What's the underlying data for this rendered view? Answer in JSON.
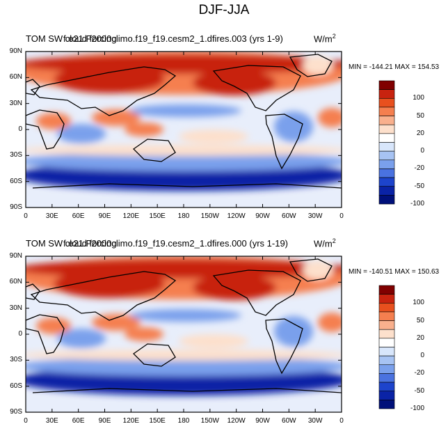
{
  "title": "DJF-JJA",
  "panels": [
    {
      "title_left": "TOM SW cloud forcing",
      "title_overlap": "f.e21.F2000climo.f19_f19.cesm2_1.dfires.003 (yrs 1-9)",
      "units_base": "W/m",
      "units_sup": "2",
      "minmax": "MIN = -144.21 MAX = 154.53"
    },
    {
      "title_left": "TOM SW cloud forcing",
      "title_overlap": "f.e21.F2000climo.f19_f19.cesm2_1.dfires.000 (yrs 1-19)",
      "units_base": "W/m",
      "units_sup": "2",
      "minmax": "MIN = -140.51 MAX = 150.63"
    }
  ],
  "lat_labels": [
    "90N",
    "60N",
    "30N",
    "0",
    "30S",
    "60S",
    "90S"
  ],
  "lon_labels": [
    "0",
    "30E",
    "60E",
    "90E",
    "120E",
    "150E",
    "180",
    "150W",
    "120W",
    "90W",
    "60W",
    "30W",
    "0"
  ],
  "colorbar_labels": [
    "100",
    "50",
    "20",
    "0",
    "-20",
    "-50",
    "-100"
  ],
  "colorbar_colors": [
    "#800000",
    "#c8230f",
    "#e8501e",
    "#f57f4f",
    "#f9b08d",
    "#fde0cc",
    "#ffffff",
    "#d8e6fb",
    "#a7c3f3",
    "#7aa0ec",
    "#4a72e0",
    "#1d44cc",
    "#0a23a6",
    "#00107a"
  ],
  "colors": {
    "strong_positive": "#c8230f",
    "positive": "#f57f4f",
    "near_zero": "#fde0cc",
    "negative": "#7aa0ec",
    "strong_negative": "#0a23a6"
  }
}
